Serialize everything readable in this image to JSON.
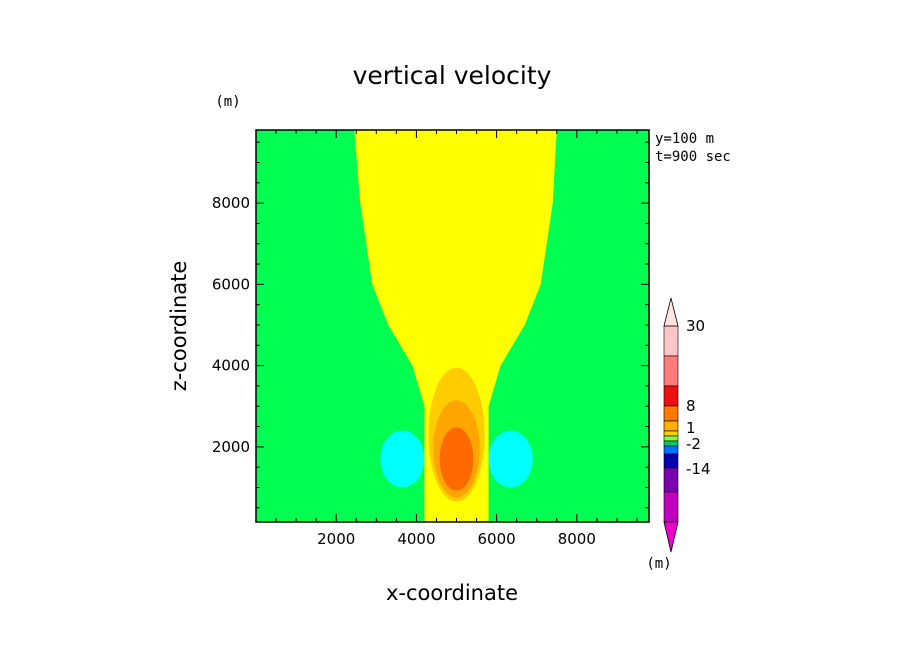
{
  "chart_data": {
    "type": "heatmap",
    "title": "vertical velocity",
    "xlabel": "x-coordinate",
    "ylabel": "z-coordinate",
    "y_unit": "(m)",
    "colorbar_unit": "(m)",
    "annotations": [
      "y=100 m",
      "t=900 sec"
    ],
    "xlim": [
      0,
      9800
    ],
    "ylim": [
      150,
      9800
    ],
    "x_ticks": [
      2000,
      4000,
      6000,
      8000
    ],
    "y_ticks": [
      2000,
      4000,
      6000,
      8000
    ],
    "grid": false,
    "legend": "right colorbar",
    "colorbar": {
      "labels": [
        {
          "text": "30",
          "value": 30
        },
        {
          "text": "8",
          "value": 8
        },
        {
          "text": "1",
          "value": 1
        },
        {
          "text": "-2",
          "value": -2
        },
        {
          "text": "-14",
          "value": -14
        }
      ],
      "segments": [
        {
          "color": "#ffc4c4"
        },
        {
          "color": "#ff7a7a"
        },
        {
          "color": "#ee1010"
        },
        {
          "color": "#ff7a00"
        },
        {
          "color": "#ffb000"
        },
        {
          "color": "#ffd000"
        },
        {
          "color": "#80ff40"
        },
        {
          "color": "#00cc66"
        },
        {
          "color": "#0070ff"
        },
        {
          "color": "#0000b0"
        },
        {
          "color": "#7a00b0"
        },
        {
          "color": "#c000c0"
        }
      ],
      "top_arrow_color": "#ffe4e4",
      "bottom_arrow_color": "#ee00cc"
    },
    "regions": [
      {
        "level": "background",
        "color": "#00ff50"
      },
      {
        "level": "updraft plume",
        "color": "#ffff00",
        "outline": [
          [
            2450,
            9800
          ],
          [
            2600,
            8000
          ],
          [
            2900,
            6000
          ],
          [
            3300,
            5000
          ],
          [
            3900,
            4000
          ],
          [
            4200,
            3000
          ],
          [
            4200,
            2200
          ],
          [
            4200,
            150
          ],
          [
            5800,
            150
          ],
          [
            5800,
            2200
          ],
          [
            5800,
            3000
          ],
          [
            6100,
            4000
          ],
          [
            6700,
            5000
          ],
          [
            7100,
            6000
          ],
          [
            7400,
            8000
          ],
          [
            7500,
            9800
          ]
        ]
      },
      {
        "level": "core outer",
        "color": "#ffcc00",
        "ellipse": {
          "cx": 5000,
          "cy": 2300,
          "rx": 700,
          "ry": 1650
        }
      },
      {
        "level": "core middle",
        "color": "#ffa500",
        "ellipse": {
          "cx": 5000,
          "cy": 1950,
          "rx": 580,
          "ry": 1200
        }
      },
      {
        "level": "core inner",
        "color": "#ff6a00",
        "ellipse": {
          "cx": 5000,
          "cy": 1700,
          "rx": 420,
          "ry": 780
        }
      },
      {
        "level": "left downdraft",
        "color": "#00ffff",
        "ellipse": {
          "cx": 3650,
          "cy": 1700,
          "rx": 550,
          "ry": 700
        }
      },
      {
        "level": "right downdraft",
        "color": "#00ffff",
        "ellipse": {
          "cx": 6350,
          "cy": 1700,
          "rx": 550,
          "ry": 700
        }
      }
    ]
  }
}
